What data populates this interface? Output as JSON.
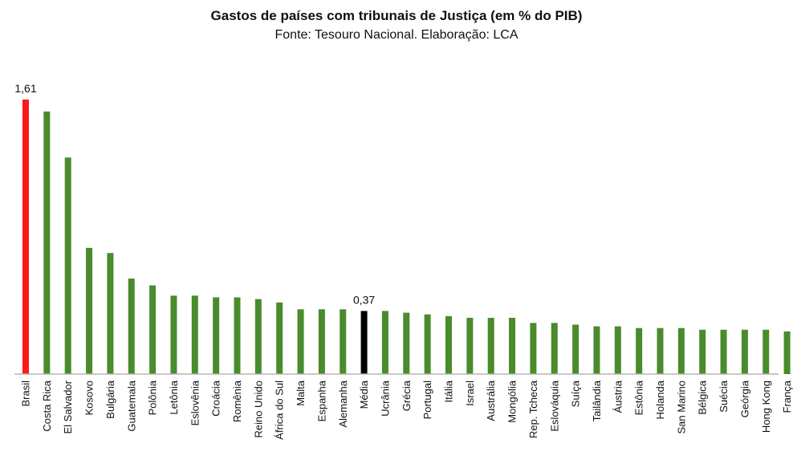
{
  "chart_data": {
    "type": "bar",
    "title": "Gastos de países com tribunais de Justiça (em % do PIB)",
    "subtitle": "Fonte: Tesouro Nacional. Elaboração: LCA",
    "xlabel": "",
    "ylabel": "",
    "ylim": [
      0,
      1.61
    ],
    "grid": false,
    "legend": "none",
    "categories": [
      "Brasil",
      "Costa Rica",
      "El Salvador",
      "Kosovo",
      "Bulgária",
      "Guatemala",
      "Polônia",
      "Letônia",
      "Eslovênia",
      "Croácia",
      "Romênia",
      "Reino Unido",
      "África do Sul",
      "Malta",
      "Espanha",
      "Alemanha",
      "Média",
      "Ucrânia",
      "Grécia",
      "Portugal",
      "Itália",
      "Israel",
      "Austrália",
      "Mongólia",
      "Rep. Tcheca",
      "Eslováquia",
      "Suíça",
      "Tailândia",
      "Áustria",
      "Estônia",
      "Holanda",
      "San Marino",
      "Bélgica",
      "Suécia",
      "Geórgia",
      "Hong Kong",
      "França"
    ],
    "values": [
      1.61,
      1.54,
      1.27,
      0.74,
      0.71,
      0.56,
      0.52,
      0.46,
      0.46,
      0.45,
      0.45,
      0.44,
      0.42,
      0.38,
      0.38,
      0.38,
      0.37,
      0.37,
      0.36,
      0.35,
      0.34,
      0.33,
      0.33,
      0.33,
      0.3,
      0.3,
      0.29,
      0.28,
      0.28,
      0.27,
      0.27,
      0.27,
      0.26,
      0.26,
      0.26,
      0.26,
      0.25
    ],
    "data_labels": [
      {
        "index": 0,
        "text": "1,61"
      },
      {
        "index": 16,
        "text": "0,37"
      }
    ],
    "colors": {
      "default": "#4a8b2c",
      "highlight_brasil": "#ff1a1a",
      "highlight_media": "#000000",
      "baseline": "#b5b5b5"
    },
    "highlights": {
      "0": "highlight_brasil",
      "16": "highlight_media"
    }
  }
}
